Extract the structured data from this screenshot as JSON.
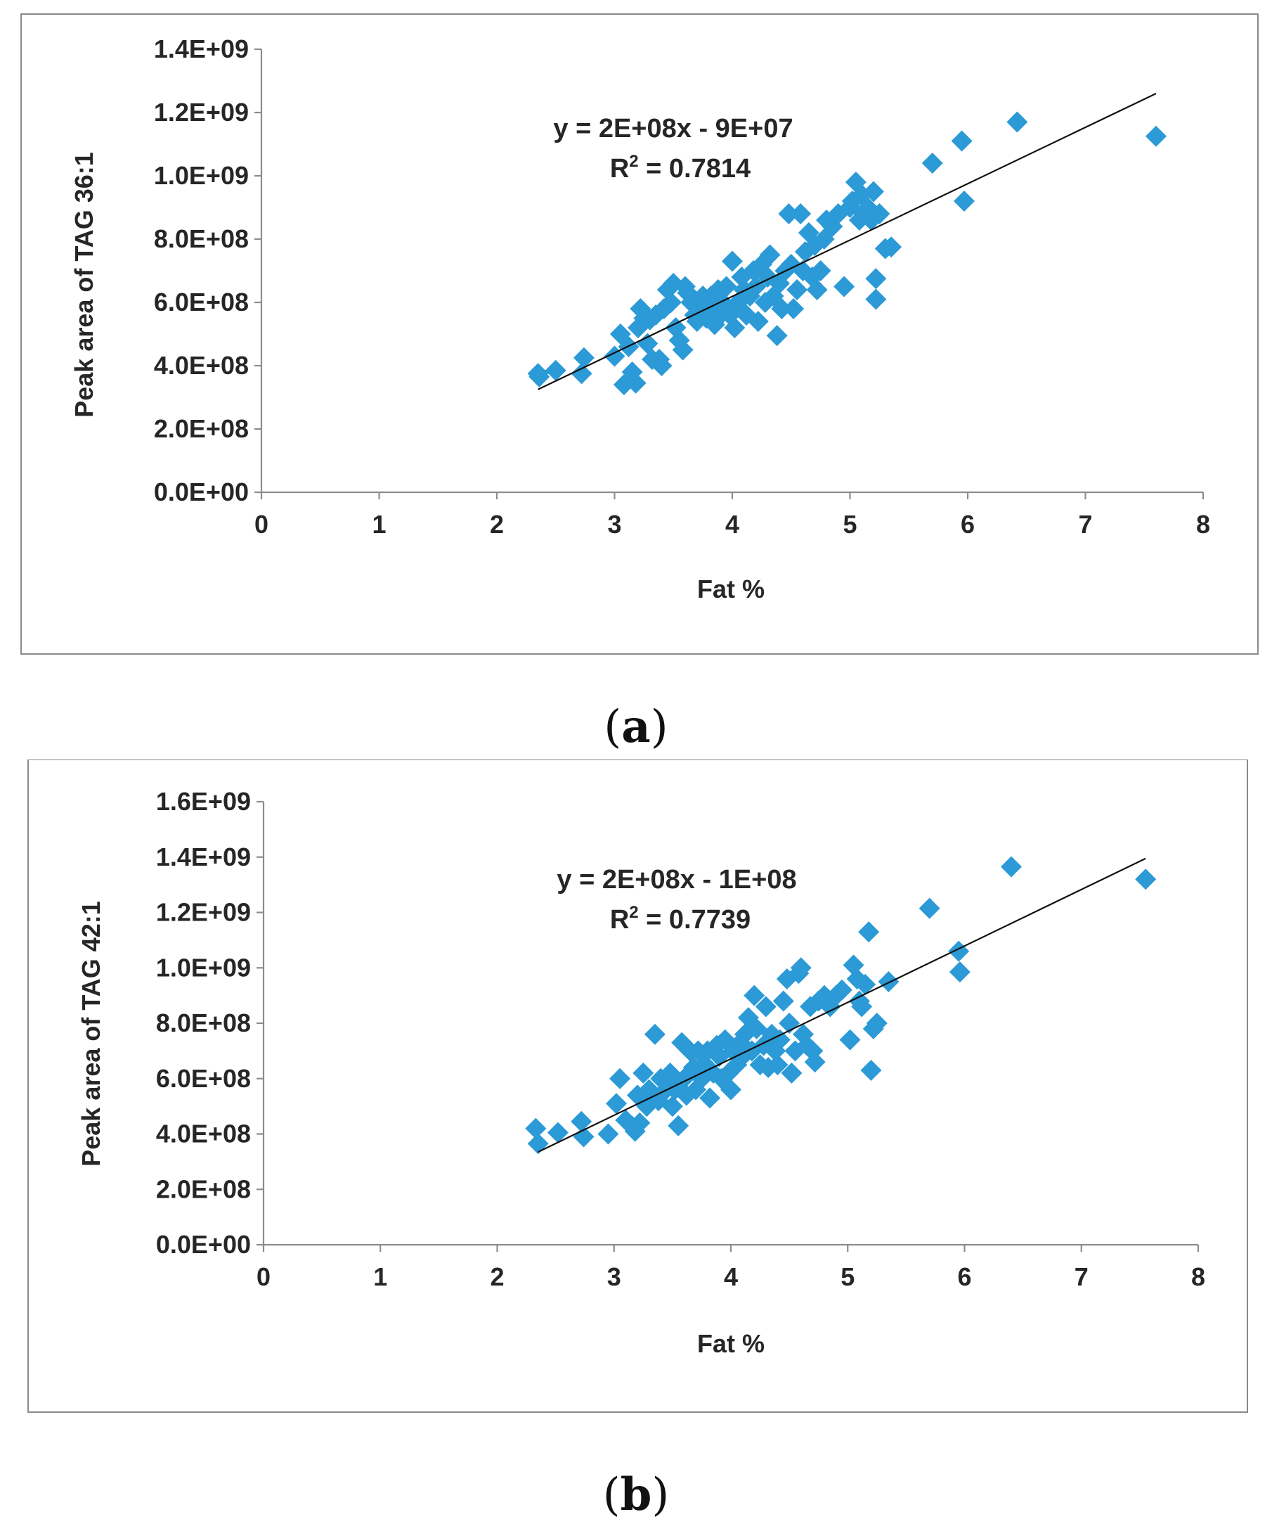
{
  "chart_data": [
    {
      "panel": "a",
      "type": "scatter",
      "caption_letter": "a",
      "xlabel": "Fat %",
      "ylabel": "Peak area of TAG 36:1",
      "xlim": [
        0,
        8
      ],
      "ylim": [
        0,
        1400000000
      ],
      "x_ticks": [
        0,
        1,
        2,
        3,
        4,
        5,
        6,
        7,
        8
      ],
      "x_tick_labels": [
        "0",
        "1",
        "2",
        "3",
        "4",
        "5",
        "6",
        "7",
        "8"
      ],
      "y_ticks": [
        0,
        200000000,
        400000000,
        600000000,
        800000000,
        1000000000,
        1200000000,
        1400000000
      ],
      "y_tick_labels": [
        "0.0E+00",
        "2.0E+08",
        "4.0E+08",
        "6.0E+08",
        "8.0E+08",
        "1.0E+09",
        "1.2E+09",
        "1.4E+09"
      ],
      "equation": "y = 2E+08x - 9E+07",
      "r2_label": "R",
      "r2_sup": "2",
      "r2_value": " = 0.7814",
      "marker_color": "#2b9ad6",
      "trendline": {
        "x": [
          2.35,
          7.6
        ],
        "y": [
          325000000,
          1260000000
        ]
      },
      "points": [
        [
          2.35,
          375000000
        ],
        [
          2.36,
          365000000
        ],
        [
          2.5,
          385000000
        ],
        [
          2.72,
          375000000
        ],
        [
          2.74,
          425000000
        ],
        [
          3.0,
          430000000
        ],
        [
          3.05,
          500000000
        ],
        [
          3.08,
          340000000
        ],
        [
          3.12,
          460000000
        ],
        [
          3.15,
          380000000
        ],
        [
          3.18,
          345000000
        ],
        [
          3.2,
          520000000
        ],
        [
          3.22,
          580000000
        ],
        [
          3.25,
          550000000
        ],
        [
          3.28,
          470000000
        ],
        [
          3.3,
          545000000
        ],
        [
          3.32,
          420000000
        ],
        [
          3.35,
          560000000
        ],
        [
          3.38,
          420000000
        ],
        [
          3.4,
          400000000
        ],
        [
          3.42,
          580000000
        ],
        [
          3.45,
          640000000
        ],
        [
          3.48,
          600000000
        ],
        [
          3.5,
          660000000
        ],
        [
          3.52,
          520000000
        ],
        [
          3.55,
          480000000
        ],
        [
          3.58,
          450000000
        ],
        [
          3.6,
          650000000
        ],
        [
          3.62,
          630000000
        ],
        [
          3.65,
          600000000
        ],
        [
          3.68,
          560000000
        ],
        [
          3.7,
          540000000
        ],
        [
          3.72,
          600000000
        ],
        [
          3.75,
          620000000
        ],
        [
          3.78,
          550000000
        ],
        [
          3.8,
          580000000
        ],
        [
          3.82,
          620000000
        ],
        [
          3.85,
          530000000
        ],
        [
          3.88,
          640000000
        ],
        [
          3.9,
          560000000
        ],
        [
          3.92,
          600000000
        ],
        [
          3.95,
          650000000
        ],
        [
          3.98,
          560000000
        ],
        [
          4.0,
          730000000
        ],
        [
          4.02,
          520000000
        ],
        [
          4.05,
          600000000
        ],
        [
          4.08,
          680000000
        ],
        [
          4.1,
          640000000
        ],
        [
          4.12,
          560000000
        ],
        [
          4.15,
          620000000
        ],
        [
          4.18,
          700000000
        ],
        [
          4.2,
          650000000
        ],
        [
          4.22,
          540000000
        ],
        [
          4.25,
          720000000
        ],
        [
          4.28,
          600000000
        ],
        [
          4.3,
          680000000
        ],
        [
          4.32,
          750000000
        ],
        [
          4.35,
          620000000
        ],
        [
          4.38,
          495000000
        ],
        [
          4.4,
          660000000
        ],
        [
          4.42,
          580000000
        ],
        [
          4.45,
          700000000
        ],
        [
          4.48,
          880000000
        ],
        [
          4.5,
          720000000
        ],
        [
          4.52,
          580000000
        ],
        [
          4.55,
          640000000
        ],
        [
          4.58,
          880000000
        ],
        [
          4.6,
          700000000
        ],
        [
          4.62,
          760000000
        ],
        [
          4.65,
          820000000
        ],
        [
          4.68,
          680000000
        ],
        [
          4.7,
          780000000
        ],
        [
          4.72,
          640000000
        ],
        [
          4.75,
          700000000
        ],
        [
          4.78,
          800000000
        ],
        [
          4.8,
          860000000
        ],
        [
          4.85,
          840000000
        ],
        [
          4.9,
          880000000
        ],
        [
          4.95,
          650000000
        ],
        [
          5.0,
          900000000
        ],
        [
          5.02,
          920000000
        ],
        [
          5.05,
          980000000
        ],
        [
          5.08,
          860000000
        ],
        [
          5.1,
          940000000
        ],
        [
          5.12,
          880000000
        ],
        [
          5.15,
          900000000
        ],
        [
          5.18,
          860000000
        ],
        [
          5.2,
          950000000
        ],
        [
          5.22,
          675000000
        ],
        [
          5.22,
          610000000
        ],
        [
          5.25,
          880000000
        ],
        [
          5.3,
          770000000
        ],
        [
          5.35,
          775000000
        ],
        [
          5.7,
          1040000000
        ],
        [
          5.95,
          1110000000
        ],
        [
          5.97,
          920000000
        ],
        [
          6.42,
          1170000000
        ],
        [
          7.6,
          1125000000
        ]
      ]
    },
    {
      "panel": "b",
      "type": "scatter",
      "caption_letter": "b",
      "xlabel": "Fat %",
      "ylabel": "Peak area of TAG 42:1",
      "xlim": [
        0,
        8
      ],
      "ylim": [
        0,
        1600000000
      ],
      "x_ticks": [
        0,
        1,
        2,
        3,
        4,
        5,
        6,
        7,
        8
      ],
      "x_tick_labels": [
        "0",
        "1",
        "2",
        "3",
        "4",
        "5",
        "6",
        "7",
        "8"
      ],
      "y_ticks": [
        0,
        200000000,
        400000000,
        600000000,
        800000000,
        1000000000,
        1200000000,
        1400000000,
        1600000000
      ],
      "y_tick_labels": [
        "0.0E+00",
        "2.0E+08",
        "4.0E+08",
        "6.0E+08",
        "8.0E+08",
        "1.0E+09",
        "1.2E+09",
        "1.4E+09",
        "1.6E+09"
      ],
      "equation": "y = 2E+08x - 1E+08",
      "r2_label": "R",
      "r2_sup": "2",
      "r2_value": " = 0.7739",
      "marker_color": "#2b9ad6",
      "trendline": {
        "x": [
          2.35,
          7.55
        ],
        "y": [
          335000000,
          1395000000
        ]
      },
      "points": [
        [
          2.33,
          420000000
        ],
        [
          2.35,
          365000000
        ],
        [
          2.52,
          405000000
        ],
        [
          2.72,
          445000000
        ],
        [
          2.74,
          390000000
        ],
        [
          2.95,
          400000000
        ],
        [
          3.02,
          510000000
        ],
        [
          3.05,
          600000000
        ],
        [
          3.1,
          450000000
        ],
        [
          3.15,
          430000000
        ],
        [
          3.18,
          410000000
        ],
        [
          3.2,
          540000000
        ],
        [
          3.22,
          440000000
        ],
        [
          3.25,
          620000000
        ],
        [
          3.28,
          500000000
        ],
        [
          3.3,
          560000000
        ],
        [
          3.35,
          760000000
        ],
        [
          3.38,
          520000000
        ],
        [
          3.4,
          600000000
        ],
        [
          3.42,
          550000000
        ],
        [
          3.45,
          580000000
        ],
        [
          3.48,
          620000000
        ],
        [
          3.5,
          500000000
        ],
        [
          3.52,
          560000000
        ],
        [
          3.55,
          430000000
        ],
        [
          3.58,
          730000000
        ],
        [
          3.6,
          600000000
        ],
        [
          3.62,
          540000000
        ],
        [
          3.65,
          700000000
        ],
        [
          3.68,
          640000000
        ],
        [
          3.7,
          560000000
        ],
        [
          3.72,
          700000000
        ],
        [
          3.75,
          600000000
        ],
        [
          3.78,
          650000000
        ],
        [
          3.8,
          700000000
        ],
        [
          3.82,
          530000000
        ],
        [
          3.85,
          620000000
        ],
        [
          3.88,
          720000000
        ],
        [
          3.9,
          680000000
        ],
        [
          3.92,
          600000000
        ],
        [
          3.95,
          740000000
        ],
        [
          3.98,
          620000000
        ],
        [
          4.0,
          560000000
        ],
        [
          4.02,
          700000000
        ],
        [
          4.05,
          650000000
        ],
        [
          4.08,
          730000000
        ],
        [
          4.1,
          680000000
        ],
        [
          4.12,
          760000000
        ],
        [
          4.15,
          820000000
        ],
        [
          4.18,
          700000000
        ],
        [
          4.2,
          900000000
        ],
        [
          4.22,
          780000000
        ],
        [
          4.25,
          650000000
        ],
        [
          4.28,
          720000000
        ],
        [
          4.3,
          860000000
        ],
        [
          4.32,
          640000000
        ],
        [
          4.35,
          760000000
        ],
        [
          4.38,
          700000000
        ],
        [
          4.4,
          650000000
        ],
        [
          4.42,
          740000000
        ],
        [
          4.45,
          880000000
        ],
        [
          4.48,
          960000000
        ],
        [
          4.5,
          800000000
        ],
        [
          4.52,
          620000000
        ],
        [
          4.55,
          700000000
        ],
        [
          4.58,
          980000000
        ],
        [
          4.6,
          1000000000
        ],
        [
          4.62,
          760000000
        ],
        [
          4.65,
          720000000
        ],
        [
          4.68,
          860000000
        ],
        [
          4.7,
          700000000
        ],
        [
          4.72,
          660000000
        ],
        [
          4.75,
          880000000
        ],
        [
          4.8,
          900000000
        ],
        [
          4.85,
          860000000
        ],
        [
          4.9,
          900000000
        ],
        [
          4.95,
          920000000
        ],
        [
          5.02,
          740000000
        ],
        [
          5.05,
          1010000000
        ],
        [
          5.08,
          960000000
        ],
        [
          5.1,
          880000000
        ],
        [
          5.12,
          860000000
        ],
        [
          5.15,
          940000000
        ],
        [
          5.18,
          1130000000
        ],
        [
          5.2,
          630000000
        ],
        [
          5.22,
          780000000
        ],
        [
          5.25,
          800000000
        ],
        [
          5.35,
          950000000
        ],
        [
          5.7,
          1215000000
        ],
        [
          5.95,
          1060000000
        ],
        [
          5.96,
          985000000
        ],
        [
          6.4,
          1365000000
        ],
        [
          7.55,
          1320000000
        ]
      ]
    }
  ]
}
